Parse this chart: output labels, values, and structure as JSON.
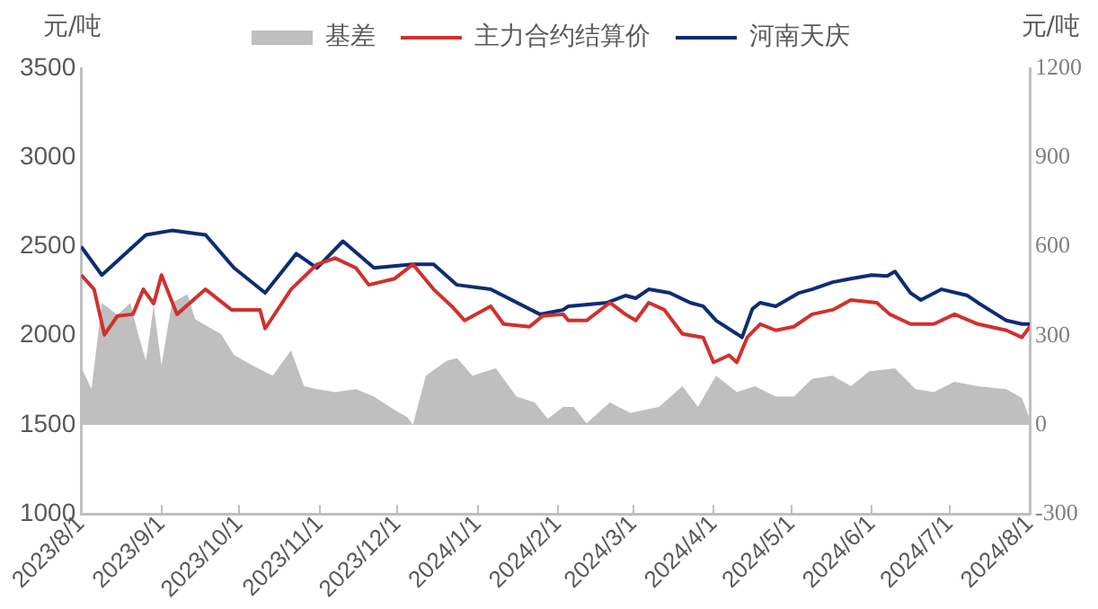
{
  "chart_data": {
    "type": "line",
    "ylabel": "元/吨",
    "y2label": "元/吨",
    "xlim": [
      "2023-08-01",
      "2024-08-01"
    ],
    "xticks": [
      {
        "value": "2023-08-01",
        "label": "2023/8/1"
      },
      {
        "value": "2023-09-01",
        "label": "2023/9/1"
      },
      {
        "value": "2023-10-01",
        "label": "2023/10/1"
      },
      {
        "value": "2023-11-01",
        "label": "2023/11/1"
      },
      {
        "value": "2023-12-01",
        "label": "2023/12/1"
      },
      {
        "value": "2024-01-01",
        "label": "2024/1/1"
      },
      {
        "value": "2024-02-01",
        "label": "2024/2/1"
      },
      {
        "value": "2024-03-01",
        "label": "2024/3/1"
      },
      {
        "value": "2024-04-01",
        "label": "2024/4/1"
      },
      {
        "value": "2024-05-01",
        "label": "2024/5/1"
      },
      {
        "value": "2024-06-01",
        "label": "2024/6/1"
      },
      {
        "value": "2024-07-01",
        "label": "2024/7/1"
      },
      {
        "value": "2024-08-01",
        "label": "2024/8/1"
      }
    ],
    "ylim": [
      1000,
      3500
    ],
    "yticks": [
      1000,
      1500,
      2000,
      2500,
      3000,
      3500
    ],
    "y2lim": [
      -300,
      1200
    ],
    "y2ticks": [
      -300,
      0,
      300,
      600,
      900,
      1200
    ],
    "grid": false,
    "legend": "top",
    "marker": "none",
    "series": [
      {
        "name": "基差",
        "type": "area",
        "axis": "y2",
        "color": "#bfbfbf",
        "x": [
          "2023-08-01",
          "2023-08-05",
          "2023-08-09",
          "2023-08-15",
          "2023-08-20",
          "2023-08-23",
          "2023-08-26",
          "2023-08-29",
          "2023-09-01",
          "2023-09-05",
          "2023-09-11",
          "2023-09-14",
          "2023-09-24",
          "2023-09-29",
          "2023-10-06",
          "2023-10-14",
          "2023-10-18",
          "2023-10-21",
          "2023-10-26",
          "2023-10-31",
          "2023-11-07",
          "2023-11-15",
          "2023-11-22",
          "2023-11-30",
          "2023-12-05",
          "2023-12-07",
          "2023-12-12",
          "2023-12-20",
          "2023-12-24",
          "2023-12-30",
          "2024-01-08",
          "2024-01-16",
          "2024-01-23",
          "2024-01-28",
          "2024-02-03",
          "2024-02-07",
          "2024-02-12",
          "2024-02-21",
          "2024-02-29",
          "2024-03-11",
          "2024-03-20",
          "2024-03-26",
          "2024-04-02",
          "2024-04-10",
          "2024-04-17",
          "2024-04-25",
          "2024-05-02",
          "2024-05-09",
          "2024-05-17",
          "2024-05-24",
          "2024-05-31",
          "2024-06-10",
          "2024-06-18",
          "2024-06-25",
          "2024-07-03",
          "2024-07-12",
          "2024-07-23",
          "2024-07-29",
          "2024-08-01"
        ],
        "values": [
          195,
          120,
          410,
          370,
          410,
          305,
          215,
          400,
          200,
          410,
          440,
          355,
          305,
          235,
          200,
          165,
          215,
          250,
          130,
          120,
          110,
          120,
          95,
          50,
          25,
          0,
          165,
          215,
          225,
          165,
          190,
          95,
          75,
          20,
          60,
          60,
          5,
          75,
          40,
          60,
          130,
          60,
          165,
          110,
          130,
          95,
          95,
          155,
          165,
          130,
          180,
          190,
          120,
          110,
          145,
          130,
          120,
          90,
          20
        ]
      },
      {
        "name": "主力合约结算价",
        "color": "#d0312d",
        "x": [
          "2023-08-01",
          "2023-08-06",
          "2023-08-10",
          "2023-08-15",
          "2023-08-21",
          "2023-08-25",
          "2023-08-29",
          "2023-09-01",
          "2023-09-07",
          "2023-09-18",
          "2023-09-28",
          "2023-10-09",
          "2023-10-11",
          "2023-10-21",
          "2023-10-31",
          "2023-11-07",
          "2023-11-15",
          "2023-11-20",
          "2023-11-30",
          "2023-12-07",
          "2023-12-15",
          "2023-12-22",
          "2023-12-27",
          "2024-01-06",
          "2024-01-11",
          "2024-01-21",
          "2024-01-26",
          "2024-02-03",
          "2024-02-05",
          "2024-02-12",
          "2024-02-21",
          "2024-02-27",
          "2024-03-02",
          "2024-03-07",
          "2024-03-13",
          "2024-03-20",
          "2024-03-28",
          "2024-04-01",
          "2024-04-07",
          "2024-04-10",
          "2024-04-14",
          "2024-04-19",
          "2024-04-25",
          "2024-05-02",
          "2024-05-09",
          "2024-05-17",
          "2024-05-24",
          "2024-06-03",
          "2024-06-08",
          "2024-06-16",
          "2024-06-25",
          "2024-07-03",
          "2024-07-12",
          "2024-07-23",
          "2024-07-29",
          "2024-08-01"
        ],
        "values": [
          2340,
          2260,
          2005,
          2110,
          2120,
          2260,
          2180,
          2340,
          2120,
          2260,
          2145,
          2145,
          2040,
          2260,
          2400,
          2435,
          2380,
          2285,
          2320,
          2400,
          2260,
          2165,
          2085,
          2165,
          2065,
          2050,
          2110,
          2120,
          2085,
          2085,
          2185,
          2120,
          2085,
          2185,
          2145,
          2010,
          1990,
          1850,
          1890,
          1850,
          1990,
          2065,
          2030,
          2050,
          2120,
          2145,
          2200,
          2185,
          2120,
          2065,
          2065,
          2120,
          2065,
          2030,
          1990,
          2050
        ]
      },
      {
        "name": "河南天庆",
        "color": "#0e2c73",
        "x": [
          "2023-08-01",
          "2023-08-09",
          "2023-08-26",
          "2023-09-05",
          "2023-09-18",
          "2023-09-29",
          "2023-10-11",
          "2023-10-23",
          "2023-10-31",
          "2023-11-10",
          "2023-11-22",
          "2023-12-07",
          "2023-12-15",
          "2023-12-24",
          "2024-01-06",
          "2024-01-25",
          "2024-02-03",
          "2024-02-05",
          "2024-02-20",
          "2024-02-27",
          "2024-03-02",
          "2024-03-07",
          "2024-03-15",
          "2024-03-23",
          "2024-03-28",
          "2024-04-02",
          "2024-04-10",
          "2024-04-12",
          "2024-04-16",
          "2024-04-19",
          "2024-04-25",
          "2024-05-04",
          "2024-05-09",
          "2024-05-17",
          "2024-05-24",
          "2024-06-01",
          "2024-06-07",
          "2024-06-10",
          "2024-06-16",
          "2024-06-20",
          "2024-06-28",
          "2024-07-08",
          "2024-07-12",
          "2024-07-23",
          "2024-07-29",
          "2024-08-01"
        ],
        "values": [
          2500,
          2340,
          2565,
          2590,
          2565,
          2380,
          2240,
          2460,
          2380,
          2530,
          2380,
          2400,
          2400,
          2285,
          2260,
          2120,
          2145,
          2165,
          2185,
          2225,
          2210,
          2260,
          2240,
          2185,
          2165,
          2085,
          2010,
          1990,
          2150,
          2185,
          2165,
          2240,
          2260,
          2300,
          2320,
          2340,
          2335,
          2360,
          2240,
          2200,
          2260,
          2225,
          2185,
          2085,
          2065,
          2065
        ]
      }
    ]
  }
}
